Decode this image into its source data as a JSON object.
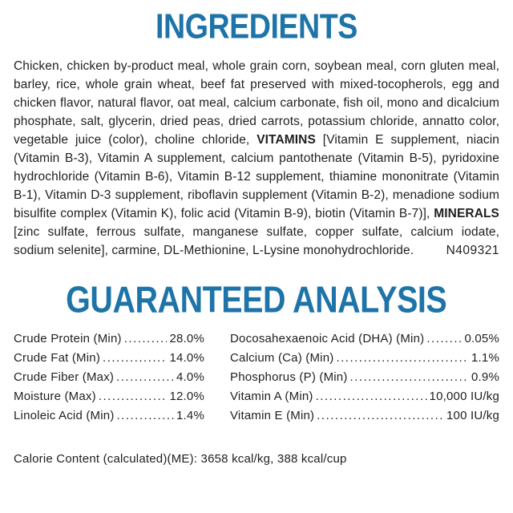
{
  "colors": {
    "accent_blue": "#1e74a8",
    "text": "#221e1f",
    "background": "#ffffff"
  },
  "ingredients": {
    "title": "INGREDIENTS",
    "body_segments": [
      {
        "text": "Chicken, chicken by-product meal, whole grain corn, soybean meal, corn gluten meal, barley, rice, whole grain wheat, beef fat preserved with mixed-tocopherols, egg and chicken flavor, natural flavor, oat meal, calcium carbonate, fish oil, mono and dicalcium phosphate, salt, glycerin, dried peas, dried carrots, potassium chloride, annatto color, vegetable juice (color), choline chloride, ",
        "bold": false
      },
      {
        "text": "VITAMINS",
        "bold": true
      },
      {
        "text": " [Vitamin E supplement, niacin (Vitamin B-3), Vitamin A supplement, calcium pantothenate (Vitamin B-5), pyridoxine hydrochloride (Vitamin B-6), Vitamin B-12 supplement, thiamine mononitrate (Vitamin B-1), Vitamin D-3 supplement, riboflavin supplement (Vitamin B-2), menadione sodium bisulfite complex (Vitamin K), folic acid (Vitamin B-9), biotin (Vitamin B-7)], ",
        "bold": false
      },
      {
        "text": "MINERALS",
        "bold": true
      },
      {
        "text": " [zinc sulfate, ferrous sulfate, manganese sulfate, copper sulfate, calcium iodate, sodium selenite], carmine, DL-Methionine, L-Lysine monohydrochloride.",
        "bold": false
      }
    ],
    "code": "N409321"
  },
  "guaranteed_analysis": {
    "title": "GUARANTEED ANALYSIS",
    "left_rows": [
      {
        "label": "Crude Protein (Min)",
        "value": "28.0%"
      },
      {
        "label": "Crude Fat (Min)",
        "value": "14.0%"
      },
      {
        "label": "Crude Fiber (Max)",
        "value": "4.0%"
      },
      {
        "label": "Moisture (Max)",
        "value": "12.0%"
      },
      {
        "label": "Linoleic Acid (Min)",
        "value": "1.4%"
      }
    ],
    "right_rows": [
      {
        "label": "Docosahexaenoic Acid (DHA) (Min)",
        "value": "0.05%"
      },
      {
        "label": "Calcium (Ca) (Min)",
        "value": "1.1%"
      },
      {
        "label": "Phosphorus (P) (Min)",
        "value": "0.9%"
      },
      {
        "label": "Vitamin A (Min)",
        "value": "10,000 IU/kg"
      },
      {
        "label": "Vitamin E (Min)",
        "value": "100 IU/kg"
      }
    ]
  },
  "calorie_content": "Calorie Content (calculated)(ME): 3658 kcal/kg, 388 kcal/cup"
}
